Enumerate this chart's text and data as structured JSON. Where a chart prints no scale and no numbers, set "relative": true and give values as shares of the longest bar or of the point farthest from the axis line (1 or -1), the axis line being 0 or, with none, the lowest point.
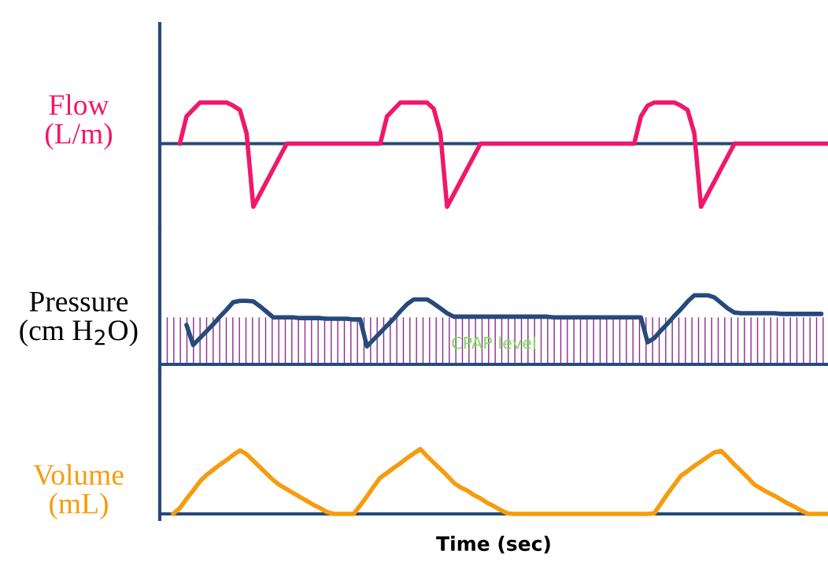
{
  "chart_data": [
    {
      "type": "line",
      "relative": true,
      "ylabel": "Flow\n(L/m)",
      "ref_lines": [
        {
          "axis": "y",
          "value": 0,
          "color": "#264a7c"
        }
      ],
      "tick_labels": false,
      "marker": "none",
      "line_style": "solid",
      "categories": [
        null,
        null,
        null,
        null,
        null,
        null,
        null,
        null,
        null,
        null,
        null,
        null,
        null,
        null,
        null,
        null,
        null,
        null,
        null,
        null,
        null,
        null,
        null,
        null,
        null,
        null,
        null,
        null,
        null,
        null,
        null,
        null,
        null,
        null,
        null,
        null,
        null,
        null,
        null,
        null,
        null,
        null,
        null,
        null,
        null,
        null,
        null,
        null,
        null,
        null,
        null,
        null,
        null,
        null,
        null,
        null,
        null,
        null,
        null,
        null,
        null,
        null,
        null,
        null,
        null,
        null,
        null,
        null,
        null,
        null,
        null,
        null,
        null,
        null,
        null,
        null,
        null,
        null,
        null,
        null,
        null,
        null,
        null,
        null,
        null,
        null,
        null,
        null,
        null,
        null,
        null,
        null,
        null,
        null,
        null,
        null,
        null,
        null,
        null,
        null,
        null
      ],
      "series": [
        {
          "color": "#f0186a",
          "values": [
            null,
            null,
            null,
            0,
            0.43,
            0.54,
            0.65,
            0.65,
            0.65,
            0.65,
            0.65,
            0.6,
            0.53,
            0.16,
            -1,
            -0.8,
            -0.6,
            -0.4,
            -0.2,
            0,
            0,
            0,
            0,
            0,
            0,
            0,
            0,
            0,
            0,
            0,
            0,
            0,
            0,
            0,
            0.43,
            0.54,
            0.65,
            0.65,
            0.65,
            0.65,
            0.65,
            0.55,
            0.16,
            -1,
            -0.8,
            -0.6,
            -0.4,
            -0.2,
            0,
            0,
            0,
            0,
            0,
            0,
            0,
            0,
            0,
            0,
            0,
            0,
            0,
            0,
            0,
            0,
            0,
            0,
            0,
            0,
            0,
            0,
            0,
            0,
            0.43,
            0.6,
            0.65,
            0.65,
            0.65,
            0.65,
            0.6,
            0.53,
            0.16,
            -1,
            -0.8,
            -0.6,
            -0.4,
            -0.2,
            0,
            0,
            0,
            0,
            0,
            0,
            0,
            0,
            0,
            0,
            0,
            0,
            0,
            0,
            0
          ]
        }
      ]
    },
    {
      "type": "line",
      "relative": true,
      "ylabel": "Pressure\n(cm H$_{2}$O)",
      "ref_lines": [
        {
          "axis": "y",
          "value": 0,
          "color": "#264a7c"
        }
      ],
      "tick_labels": false,
      "marker": "none",
      "line_style": "solid",
      "categories": [
        null,
        null,
        null,
        null,
        null,
        null,
        null,
        null,
        null,
        null,
        null,
        null,
        null,
        null,
        null,
        null,
        null,
        null,
        null,
        null,
        null,
        null,
        null,
        null,
        null,
        null,
        null,
        null,
        null,
        null,
        null,
        null,
        null,
        null,
        null,
        null,
        null,
        null,
        null,
        null,
        null,
        null,
        null,
        null,
        null,
        null,
        null,
        null,
        null,
        null,
        null,
        null,
        null,
        null,
        null,
        null,
        null,
        null,
        null,
        null,
        null,
        null,
        null,
        null,
        null,
        null,
        null,
        null,
        null,
        null,
        null,
        null,
        null,
        null,
        null,
        null,
        null,
        null,
        null,
        null,
        null,
        null,
        null,
        null,
        null,
        null,
        null,
        null,
        null,
        null,
        null,
        null,
        null,
        null,
        null,
        null,
        null,
        null,
        null,
        null,
        null
      ],
      "series": [
        {
          "color": "#264a7c",
          "values": [
            null,
            null,
            null,
            null,
            0.57,
            0.28,
            0.38,
            0.48,
            0.58,
            0.69,
            0.79,
            0.9,
            0.92,
            0.92,
            0.91,
            0.84,
            0.76,
            0.68,
            0.68,
            0.68,
            0.68,
            0.67,
            0.67,
            0.67,
            0.67,
            0.66,
            0.66,
            0.66,
            0.66,
            0.65,
            0.65,
            0.26,
            0.36,
            0.46,
            0.56,
            0.66,
            0.77,
            0.87,
            0.94,
            0.94,
            0.94,
            0.88,
            0.81,
            0.74,
            0.69,
            0.69,
            0.69,
            0.69,
            0.69,
            0.69,
            0.69,
            0.69,
            0.69,
            0.69,
            0.69,
            0.69,
            0.69,
            0.69,
            0.69,
            0.68,
            0.68,
            0.68,
            0.68,
            0.68,
            0.68,
            0.68,
            0.68,
            0.68,
            0.68,
            0.68,
            0.68,
            0.68,
            0.68,
            0.32,
            0.38,
            0.49,
            0.59,
            0.7,
            0.8,
            0.91,
            1,
            1,
            1,
            0.97,
            0.89,
            0.81,
            0.75,
            0.74,
            0.74,
            0.74,
            0.74,
            0.74,
            0.74,
            0.73,
            0.73,
            0.73,
            0.73,
            0.73,
            0.73,
            0.73,
            null
          ]
        }
      ],
      "bands": [
        {
          "axis": "y",
          "from": 0,
          "to": 0.68,
          "label": "CPAP level",
          "color": "#8b2a8b"
        }
      ]
    },
    {
      "type": "line",
      "relative": true,
      "ylabel": "Volume\n(mL)",
      "ref_lines": [
        {
          "axis": "y",
          "value": 0,
          "color": "#264a7c"
        }
      ],
      "xlabel": "Time (sec)",
      "tick_labels": false,
      "marker": "none",
      "line_style": "solid",
      "categories": [
        null,
        null,
        null,
        null,
        null,
        null,
        null,
        null,
        null,
        null,
        null,
        null,
        null,
        null,
        null,
        null,
        null,
        null,
        null,
        null,
        null,
        null,
        null,
        null,
        null,
        null,
        null,
        null,
        null,
        null,
        null,
        null,
        null,
        null,
        null,
        null,
        null,
        null,
        null,
        null,
        null,
        null,
        null,
        null,
        null,
        null,
        null,
        null,
        null,
        null,
        null,
        null,
        null,
        null,
        null,
        null,
        null,
        null,
        null,
        null,
        null,
        null,
        null,
        null,
        null,
        null,
        null,
        null,
        null,
        null,
        null,
        null,
        null,
        null,
        null,
        null,
        null,
        null,
        null,
        null,
        null,
        null,
        null,
        null,
        null,
        null,
        null,
        null,
        null,
        null,
        null,
        null,
        null,
        null,
        null,
        null,
        null,
        null,
        null,
        null,
        null
      ],
      "series": [
        {
          "color": "#f59c0f",
          "values": [
            null,
            null,
            0,
            0.09,
            0.23,
            0.36,
            0.5,
            0.6,
            0.68,
            0.76,
            0.83,
            0.91,
            0.98,
            0.92,
            0.82,
            0.72,
            0.62,
            0.52,
            0.44,
            0.38,
            0.32,
            0.26,
            0.2,
            0.14,
            0.09,
            0.03,
            0,
            0,
            0,
            0,
            0.13,
            0.27,
            0.42,
            0.56,
            0.63,
            0.71,
            0.78,
            0.86,
            0.93,
            1,
            0.89,
            0.79,
            0.69,
            0.59,
            0.48,
            0.41,
            0.36,
            0.29,
            0.24,
            0.17,
            0.12,
            0.06,
            0.01,
            0,
            0,
            0,
            0,
            0,
            0,
            0,
            0,
            0,
            0,
            0,
            0,
            0,
            0,
            0,
            0,
            0,
            0,
            0,
            0,
            0,
            0.01,
            0.16,
            0.31,
            0.45,
            0.59,
            0.66,
            0.74,
            0.81,
            0.88,
            0.95,
            0.97,
            0.87,
            0.76,
            0.66,
            0.56,
            0.45,
            0.39,
            0.33,
            0.28,
            0.22,
            0.16,
            0.11,
            0.05,
            0,
            0,
            0,
            0
          ]
        }
      ]
    }
  ]
}
